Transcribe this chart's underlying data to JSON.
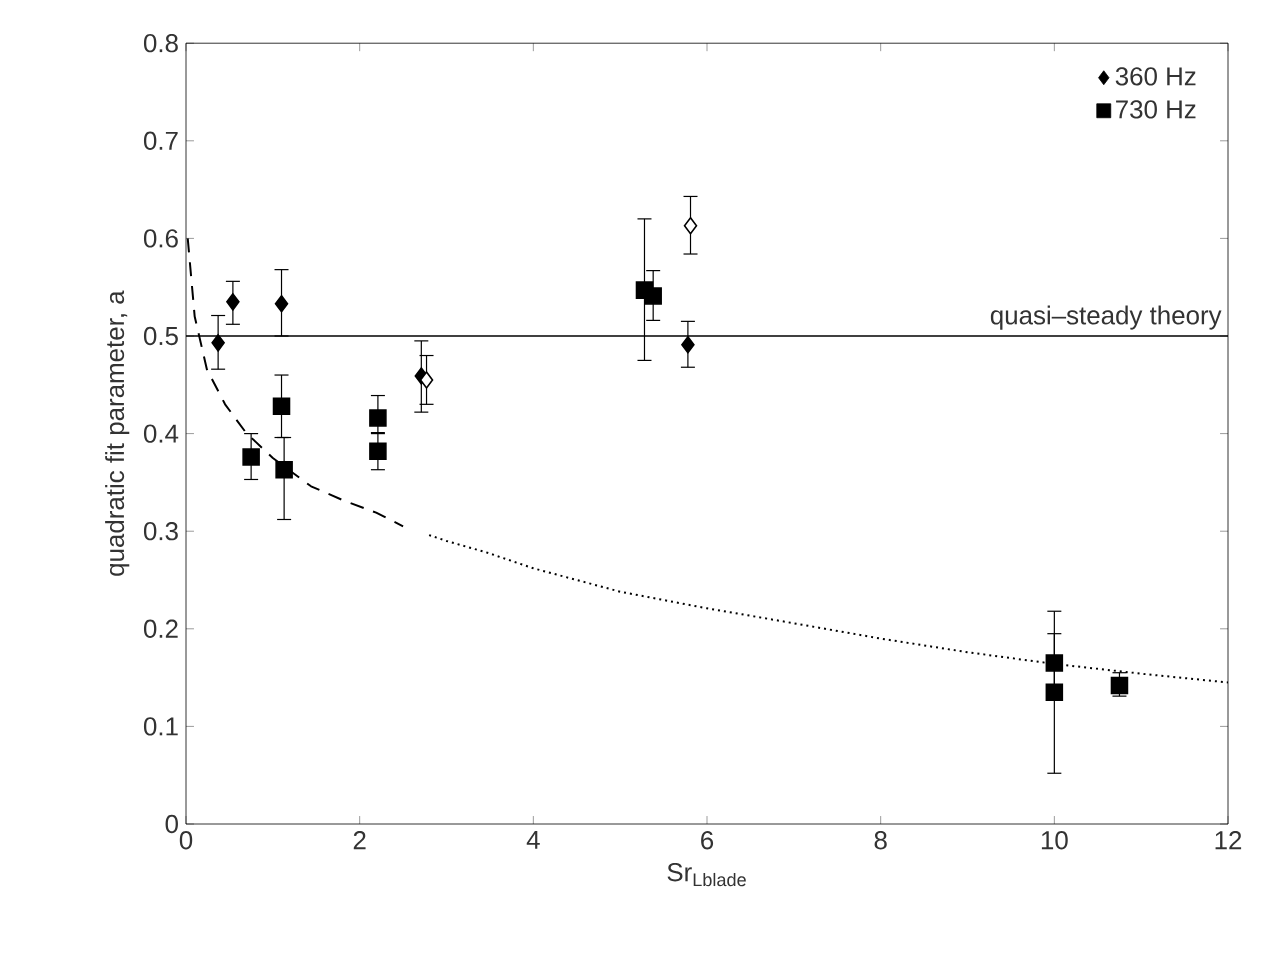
{
  "chart_data": {
    "type": "scatter",
    "xlabel": "Sr$_{Lblade}$",
    "ylabel": "quadratic fit parameter, a",
    "xlim": [
      0,
      12
    ],
    "ylim": [
      0,
      0.8
    ],
    "xticks": [
      0,
      2,
      4,
      6,
      8,
      10,
      12
    ],
    "yticks": [
      0,
      0.1,
      0.2,
      0.3,
      0.4,
      0.5,
      0.6,
      0.7,
      0.8
    ],
    "grid": false,
    "legend": "top right",
    "series": [
      {
        "name": "360 Hz",
        "marker": "diamond",
        "color": "#000000",
        "colors": [
          "#000000",
          "#000000",
          "#000000",
          "#000000",
          "#ffffff",
          "#ffffff",
          "#000000"
        ],
        "x": [
          0.37,
          0.54,
          1.1,
          2.71,
          2.77,
          5.81,
          5.78
        ],
        "values": [
          0.493,
          0.535,
          0.533,
          0.459,
          0.455,
          0.613,
          0.491
        ],
        "errors": [
          [
            0.466,
            0.521
          ],
          [
            0.512,
            0.556
          ],
          [
            0.5,
            0.568
          ],
          [
            0.422,
            0.495
          ],
          [
            0.43,
            0.48
          ],
          [
            0.584,
            0.643
          ],
          [
            0.468,
            0.515
          ]
        ]
      },
      {
        "name": "730 Hz",
        "marker": "square",
        "color": "#000000",
        "colors": [
          "#000000",
          "#000000",
          "#000000",
          "#000000",
          "#000000",
          "#000000",
          "#000000",
          "#000000",
          "#000000",
          "#000000"
        ],
        "x": [
          0.75,
          1.1,
          1.13,
          2.21,
          2.21,
          5.28,
          5.38,
          10.0,
          10.0,
          10.75
        ],
        "values": [
          0.376,
          0.428,
          0.363,
          0.416,
          0.382,
          0.547,
          0.541,
          0.165,
          0.135,
          0.142
        ],
        "errors": [
          [
            0.353,
            0.4
          ],
          [
            0.396,
            0.46
          ],
          [
            0.312,
            0.396
          ],
          [
            0.4,
            0.439
          ],
          [
            0.363,
            0.401
          ],
          [
            0.475,
            0.62
          ],
          [
            0.516,
            0.567
          ],
          [
            0.13,
            0.218
          ],
          [
            0.052,
            0.195
          ],
          [
            0.131,
            0.155
          ]
        ]
      },
      {
        "type": "line",
        "line_style": "dashed",
        "color": "#000000",
        "x": [
          0.02,
          0.1,
          0.24,
          0.45,
          0.69,
          1.0,
          1.44,
          1.8,
          2.19,
          2.5
        ],
        "values": [
          0.6,
          0.52,
          0.466,
          0.43,
          0.401,
          0.375,
          0.346,
          0.332,
          0.319,
          0.305
        ]
      },
      {
        "type": "line",
        "line_style": "dotted",
        "color": "#000000",
        "x": [
          2.8,
          3.0,
          3.47,
          4.0,
          5.0,
          6.0,
          6.85,
          8.0,
          9.0,
          10.0,
          11.0,
          12.0
        ],
        "values": [
          0.296,
          0.29,
          0.278,
          0.262,
          0.238,
          0.221,
          0.208,
          0.19,
          0.176,
          0.164,
          0.154,
          0.145
        ]
      }
    ],
    "ref_lines": [
      {
        "axis": "y",
        "value": 0.5,
        "label": "quasi–steady theory",
        "color": "#000000",
        "line_style": "solid"
      }
    ]
  }
}
